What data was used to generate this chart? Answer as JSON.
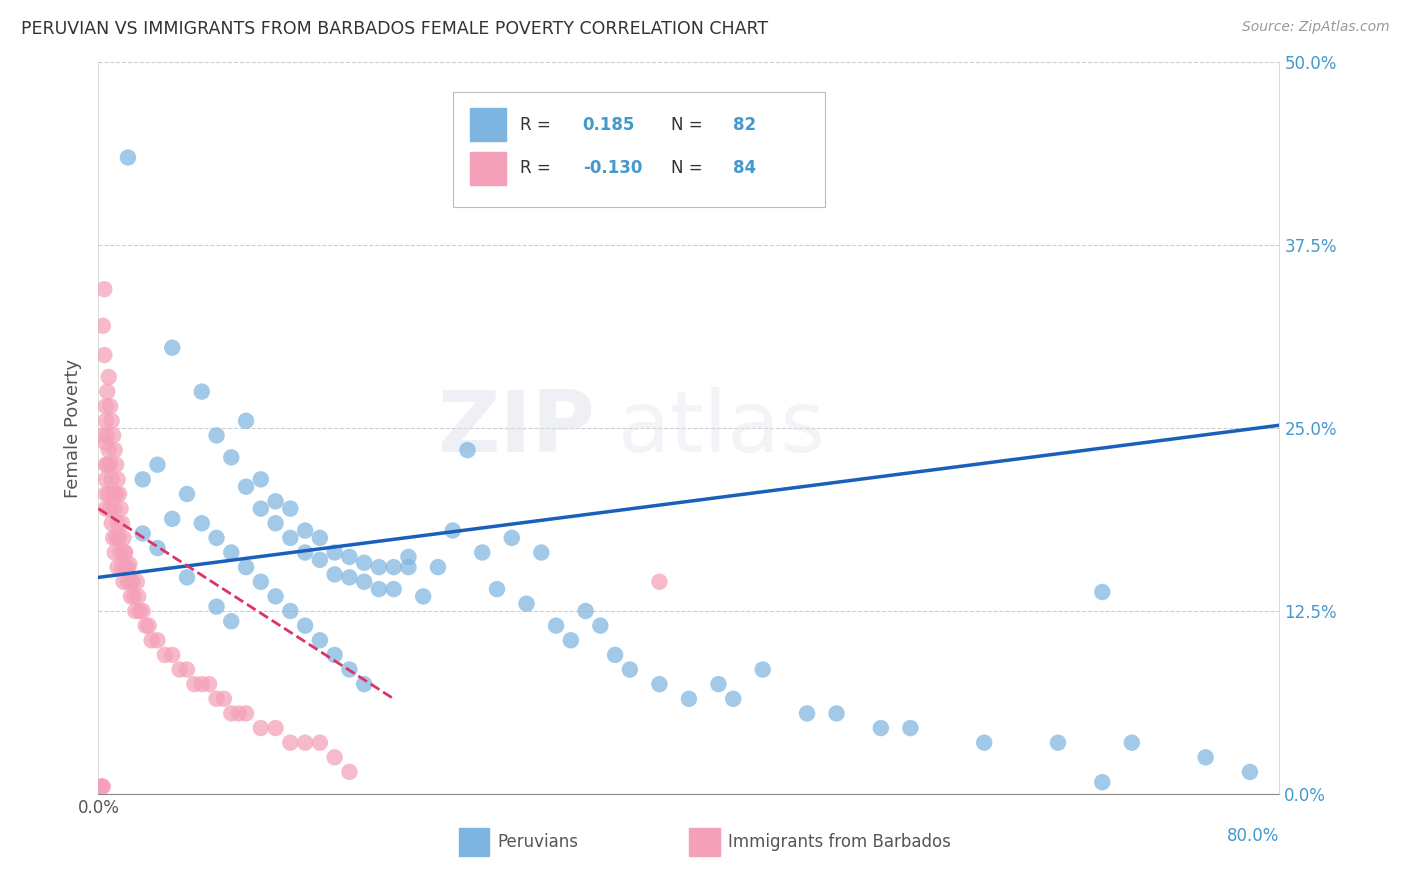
{
  "title": "PERUVIAN VS IMMIGRANTS FROM BARBADOS FEMALE POVERTY CORRELATION CHART",
  "source": "Source: ZipAtlas.com",
  "ylabel": "Female Poverty",
  "ytick_labels": [
    "0.0%",
    "12.5%",
    "25.0%",
    "37.5%",
    "50.0%"
  ],
  "ytick_vals": [
    0.0,
    0.125,
    0.25,
    0.375,
    0.5
  ],
  "xlim": [
    0.0,
    0.8
  ],
  "ylim": [
    0.0,
    0.5
  ],
  "blue_color": "#7EB5E0",
  "pink_color": "#F4A0B8",
  "blue_line_color": "#1A5FBB",
  "pink_line_color": "#DD3366",
  "watermark_text": "ZIPatlas",
  "legend_label_blue": "Peruvians",
  "legend_label_pink": "Immigrants from Barbados",
  "blue_x": [
    0.02,
    0.05,
    0.07,
    0.08,
    0.09,
    0.1,
    0.1,
    0.11,
    0.11,
    0.12,
    0.12,
    0.13,
    0.13,
    0.14,
    0.14,
    0.15,
    0.15,
    0.16,
    0.16,
    0.17,
    0.17,
    0.18,
    0.18,
    0.19,
    0.19,
    0.2,
    0.2,
    0.21,
    0.21,
    0.22,
    0.23,
    0.24,
    0.25,
    0.26,
    0.27,
    0.28,
    0.29,
    0.3,
    0.31,
    0.32,
    0.33,
    0.34,
    0.35,
    0.36,
    0.38,
    0.4,
    0.42,
    0.43,
    0.45,
    0.48,
    0.5,
    0.53,
    0.55,
    0.6,
    0.65,
    0.7,
    0.75,
    0.78,
    0.03,
    0.04,
    0.06,
    0.07,
    0.08,
    0.09,
    0.1,
    0.11,
    0.12,
    0.13,
    0.14,
    0.15,
    0.16,
    0.17,
    0.18,
    0.68,
    0.03,
    0.04,
    0.05,
    0.06,
    0.08,
    0.09,
    0.68
  ],
  "blue_y": [
    0.435,
    0.305,
    0.275,
    0.245,
    0.23,
    0.21,
    0.255,
    0.195,
    0.215,
    0.185,
    0.2,
    0.175,
    0.195,
    0.165,
    0.18,
    0.16,
    0.175,
    0.15,
    0.165,
    0.148,
    0.162,
    0.145,
    0.158,
    0.14,
    0.155,
    0.14,
    0.155,
    0.155,
    0.162,
    0.135,
    0.155,
    0.18,
    0.235,
    0.165,
    0.14,
    0.175,
    0.13,
    0.165,
    0.115,
    0.105,
    0.125,
    0.115,
    0.095,
    0.085,
    0.075,
    0.065,
    0.075,
    0.065,
    0.085,
    0.055,
    0.055,
    0.045,
    0.045,
    0.035,
    0.035,
    0.035,
    0.025,
    0.015,
    0.215,
    0.225,
    0.205,
    0.185,
    0.175,
    0.165,
    0.155,
    0.145,
    0.135,
    0.125,
    0.115,
    0.105,
    0.095,
    0.085,
    0.075,
    0.138,
    0.178,
    0.168,
    0.188,
    0.148,
    0.128,
    0.118,
    0.008
  ],
  "pink_x": [
    0.002,
    0.003,
    0.004,
    0.005,
    0.005,
    0.005,
    0.005,
    0.005,
    0.006,
    0.006,
    0.007,
    0.007,
    0.008,
    0.008,
    0.009,
    0.009,
    0.01,
    0.01,
    0.011,
    0.011,
    0.012,
    0.012,
    0.013,
    0.013,
    0.014,
    0.015,
    0.016,
    0.017,
    0.018,
    0.019,
    0.02,
    0.021,
    0.022,
    0.023,
    0.024,
    0.025,
    0.026,
    0.027,
    0.028,
    0.03,
    0.032,
    0.034,
    0.036,
    0.04,
    0.045,
    0.05,
    0.055,
    0.06,
    0.065,
    0.07,
    0.075,
    0.08,
    0.085,
    0.09,
    0.095,
    0.1,
    0.11,
    0.12,
    0.13,
    0.14,
    0.15,
    0.16,
    0.17,
    0.003,
    0.004,
    0.005,
    0.005,
    0.006,
    0.007,
    0.008,
    0.009,
    0.01,
    0.011,
    0.012,
    0.013,
    0.014,
    0.015,
    0.016,
    0.017,
    0.018,
    0.02,
    0.022,
    0.003,
    0.38,
    0.002
  ],
  "pink_y": [
    0.005,
    0.005,
    0.345,
    0.24,
    0.225,
    0.215,
    0.205,
    0.195,
    0.245,
    0.225,
    0.235,
    0.205,
    0.225,
    0.195,
    0.215,
    0.185,
    0.205,
    0.175,
    0.195,
    0.165,
    0.205,
    0.175,
    0.185,
    0.155,
    0.175,
    0.165,
    0.155,
    0.145,
    0.165,
    0.155,
    0.145,
    0.157,
    0.135,
    0.145,
    0.135,
    0.125,
    0.145,
    0.135,
    0.125,
    0.125,
    0.115,
    0.115,
    0.105,
    0.105,
    0.095,
    0.095,
    0.085,
    0.085,
    0.075,
    0.075,
    0.075,
    0.065,
    0.065,
    0.055,
    0.055,
    0.055,
    0.045,
    0.045,
    0.035,
    0.035,
    0.035,
    0.025,
    0.015,
    0.32,
    0.3,
    0.255,
    0.265,
    0.275,
    0.285,
    0.265,
    0.255,
    0.245,
    0.235,
    0.225,
    0.215,
    0.205,
    0.195,
    0.185,
    0.175,
    0.165,
    0.155,
    0.145,
    0.245,
    0.145,
    0.005
  ],
  "blue_line_x0": 0.0,
  "blue_line_y0": 0.148,
  "blue_line_x1": 0.8,
  "blue_line_y1": 0.252,
  "pink_line_x0": 0.0,
  "pink_line_y0": 0.195,
  "pink_line_x1": 0.2,
  "pink_line_y1": 0.065
}
